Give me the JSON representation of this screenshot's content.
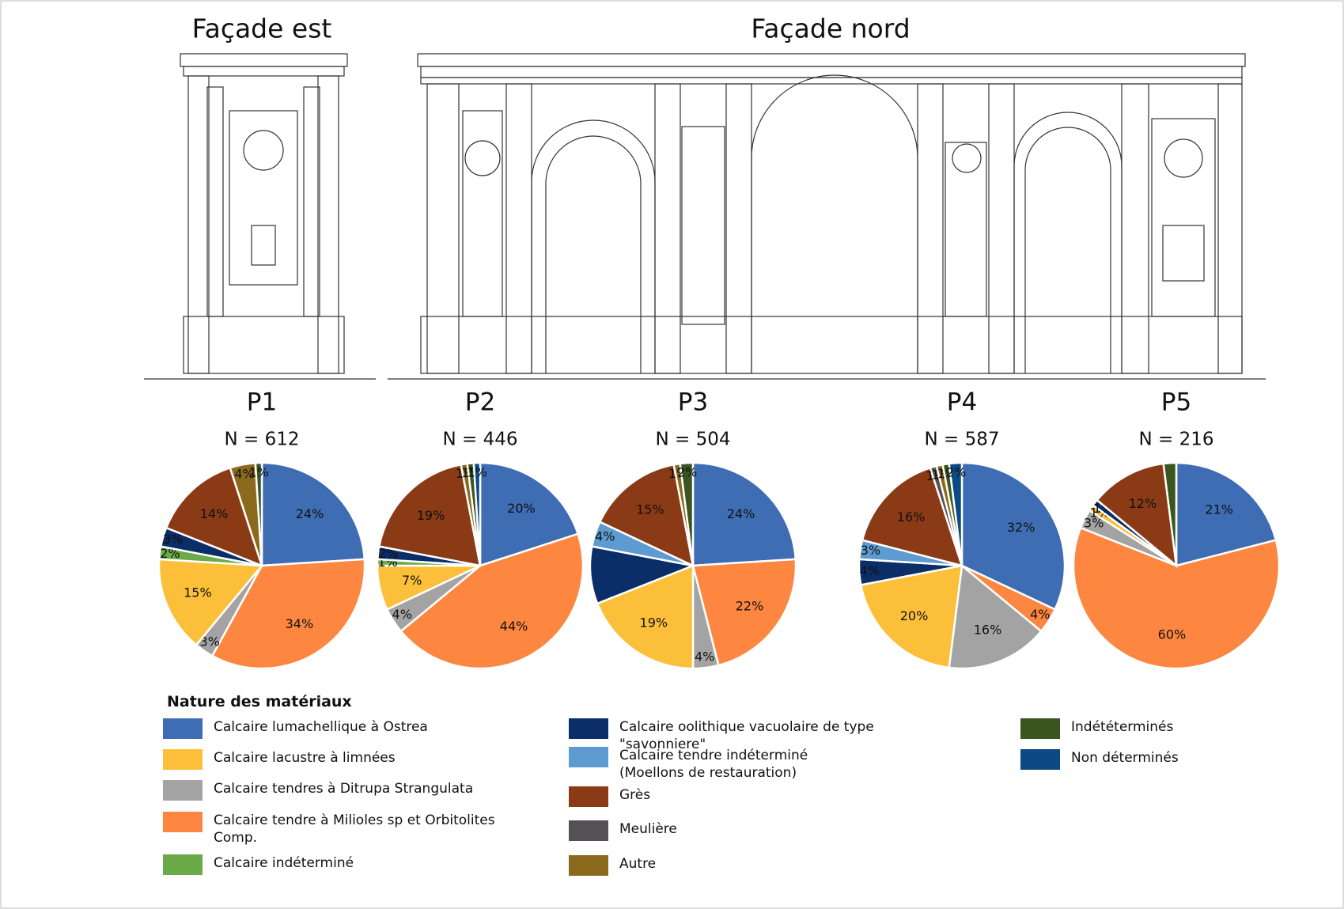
{
  "facades": [
    "Façade est",
    "Façade nord"
  ],
  "legend": {
    "title": "Nature des matériaux",
    "items": [
      {
        "label": "Calcaire lumachellique à Ostrea",
        "color": "#3e6db3"
      },
      {
        "label": "Calcaire lacustre à limnées",
        "color": "#fbbf3a"
      },
      {
        "label": "Calcaire tendres à Ditrupa Strangulata",
        "color": "#a3a3a3"
      },
      {
        "label": "Calcaire tendre à Milioles sp et Orbitolites Comp.",
        "color": "#fd8640"
      },
      {
        "label": "Calcaire indéterminé",
        "color": "#6aaa48"
      },
      {
        "label": "Calcaire oolithique vacuolaire de type \"savonniere\"",
        "color": "#0b2d68"
      },
      {
        "label": "Calcaire tendre indéterminé (Moellons de restauration)",
        "color": "#5d9bd0"
      },
      {
        "label": "Grès",
        "color": "#8b3a16"
      },
      {
        "label": "Meulière",
        "color": "#545056"
      },
      {
        "label": "Autre",
        "color": "#8b6a1e"
      },
      {
        "label": "Indététerminés",
        "color": "#3a5520"
      },
      {
        "label": "Non déterminés",
        "color": "#0d4a85"
      }
    ]
  },
  "chart_data": [
    {
      "type": "pie",
      "title": "P1",
      "subtitle": "N = 612",
      "values": [
        24,
        15,
        3,
        34,
        2,
        3,
        null,
        14,
        null,
        4,
        1,
        null
      ],
      "value_labels": [
        "24%",
        "15%",
        "3%",
        "34%",
        "2%",
        "3%",
        null,
        "14%",
        null,
        "4%",
        "1%",
        null
      ]
    },
    {
      "type": "pie",
      "title": "P2",
      "subtitle": "N = 446",
      "values": [
        20,
        7,
        4,
        44,
        1,
        2,
        null,
        19,
        null,
        1,
        1,
        1
      ],
      "value_labels": [
        "20%",
        "7%",
        "4%",
        "44%",
        "1%",
        "2%",
        null,
        "19%",
        null,
        "1%",
        "1%",
        "1%"
      ]
    },
    {
      "type": "pie",
      "title": "P3",
      "subtitle": "N = 504",
      "values": [
        24,
        19,
        4,
        22,
        null,
        9,
        4,
        15,
        null,
        1,
        2,
        null
      ],
      "value_labels": [
        "24%",
        "19%",
        "4%",
        "22%",
        null,
        null,
        "4%",
        "15%",
        null,
        "1%",
        "2%",
        null
      ]
    },
    {
      "type": "pie",
      "title": "P4",
      "subtitle": "N = 587",
      "values": [
        32,
        20,
        16,
        4,
        null,
        4,
        3,
        16,
        1,
        1,
        1,
        2
      ],
      "value_labels": [
        "32%",
        "20%",
        "16%",
        "4%",
        null,
        "4%",
        "3%",
        "16%",
        "1%",
        "1%",
        "1%",
        "2%"
      ]
    },
    {
      "type": "pie",
      "title": "P5",
      "subtitle": "N = 216",
      "values": [
        21,
        1,
        3,
        60,
        null,
        1,
        null,
        12,
        null,
        null,
        2,
        null
      ],
      "value_labels": [
        "21%",
        "1%",
        "3%",
        "60%",
        null,
        "1%",
        null,
        "12%",
        null,
        null,
        null,
        null
      ]
    }
  ]
}
